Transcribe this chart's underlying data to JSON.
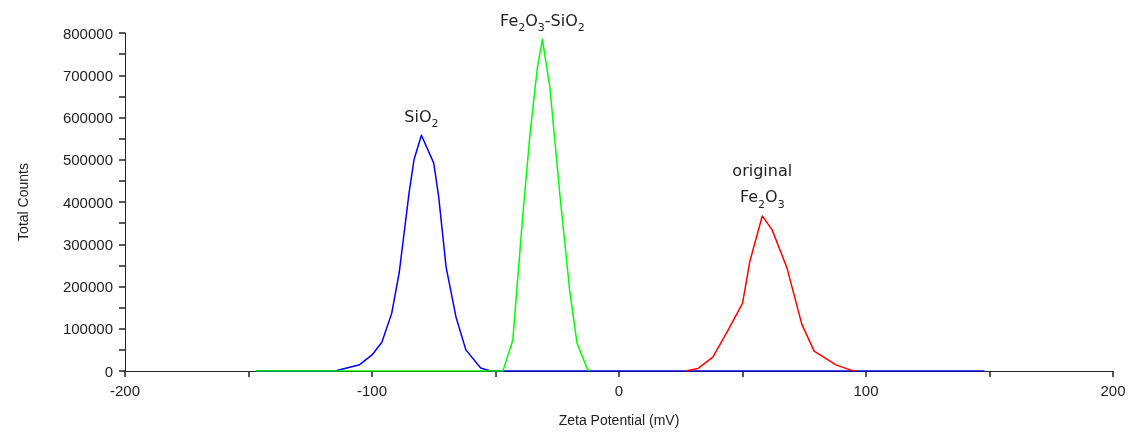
{
  "chart_data": {
    "type": "line",
    "xlabel": "Zeta Potential (mV)",
    "ylabel": "Total Counts",
    "xlim": [
      -200,
      200
    ],
    "xticks": [
      -200,
      {
        "value": -150,
        "label": null
      },
      -100,
      {
        "value": -50,
        "label": null
      },
      0,
      {
        "value": 50,
        "label": null
      },
      100,
      {
        "value": 150,
        "label": null
      },
      200
    ],
    "ylim": [
      0,
      800000
    ],
    "yticks": [
      0,
      {
        "value": 50000,
        "label": null
      },
      100000,
      {
        "value": 150000,
        "label": null
      },
      200000,
      {
        "value": 250000,
        "label": null
      },
      300000,
      {
        "value": 350000,
        "label": null
      },
      400000,
      {
        "value": 450000,
        "label": null
      },
      500000,
      {
        "value": 550000,
        "label": null
      },
      600000,
      {
        "value": 650000,
        "label": null
      },
      700000,
      {
        "value": 750000,
        "label": null
      },
      800000
    ],
    "grid": false,
    "legend": false,
    "marker": "none",
    "line_style": "solid",
    "series": [
      {
        "name": "SiO$_{2}$",
        "color": "#0000ff",
        "x": [
          -147,
          -115,
          -105,
          -100,
          -96,
          -92,
          -89,
          -85,
          -83,
          -80,
          -75,
          -73,
          -70,
          -66,
          -62,
          -56,
          -52,
          148
        ],
        "values": [
          0,
          0,
          15000,
          38000,
          68000,
          137000,
          232000,
          421000,
          500000,
          558000,
          492000,
          412000,
          246000,
          128000,
          50000,
          7000,
          0,
          0
        ]
      },
      {
        "name": "Fe$_{2}$O$_{3}$-SiO$_{2}$",
        "color": "#00ff00",
        "x": [
          -147,
          -47,
          -43,
          -39,
          -36,
          -33,
          -31,
          -28,
          -24,
          -20,
          -17,
          -13,
          -12
        ],
        "values": [
          0,
          0,
          73000,
          365000,
          563000,
          720000,
          785000,
          672000,
          421000,
          192000,
          66000,
          7000,
          0
        ]
      },
      {
        "name": "original\nFe$_{2}$O$_{3}$",
        "color": "#ff0000",
        "x": [
          27,
          32,
          38,
          44,
          50,
          53,
          58,
          62,
          68,
          74,
          79,
          88,
          94,
          96
        ],
        "values": [
          0,
          6000,
          33000,
          95000,
          160000,
          260000,
          367000,
          334000,
          244000,
          111000,
          47000,
          14000,
          2000,
          0
        ]
      }
    ]
  }
}
